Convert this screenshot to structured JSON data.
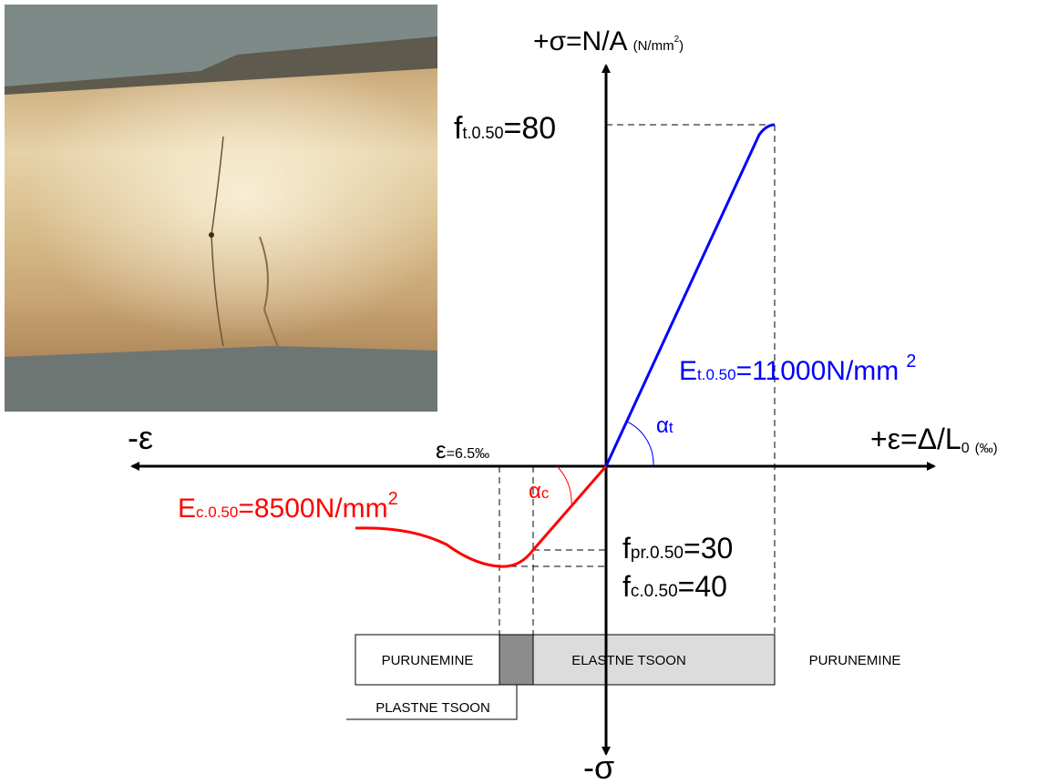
{
  "axes": {
    "y_top": {
      "main": "+σ=N/A",
      "unit": "(N/mm",
      "unit_sup": "2",
      "unit_end": ")"
    },
    "y_bottom": "-σ",
    "x_left": "-ε",
    "x_right": {
      "main": "+ε=Δ/L",
      "sub": "0",
      "unit": "(‰)"
    }
  },
  "labels": {
    "strain": {
      "symbol": "ε",
      "value": "=6.5‰"
    },
    "ft": {
      "symbol": "f",
      "sub": "t.0.50",
      "value": "=80"
    },
    "Et": {
      "symbol": "E",
      "sub": "t.0.50",
      "value": "=11000N/mm",
      "sup": "2"
    },
    "alpha_t": {
      "symbol": "α",
      "sub": "t"
    },
    "alpha_c": {
      "symbol": "α",
      "sub": "c"
    },
    "Ec": {
      "symbol": "E",
      "sub": "c.0.50",
      "value": "=8500N/mm",
      "sup": "2"
    },
    "fpr": {
      "symbol": "f",
      "sub": "pr.0.50",
      "value": "=30"
    },
    "fc": {
      "symbol": "f",
      "sub": "c.0.50",
      "value": "=40"
    }
  },
  "zones": {
    "left": "PURUNEMINE",
    "elastic": "ELASTNE TSOON",
    "right": "PURUNEMINE",
    "plastic": "PLASTNE TSOON"
  }
}
